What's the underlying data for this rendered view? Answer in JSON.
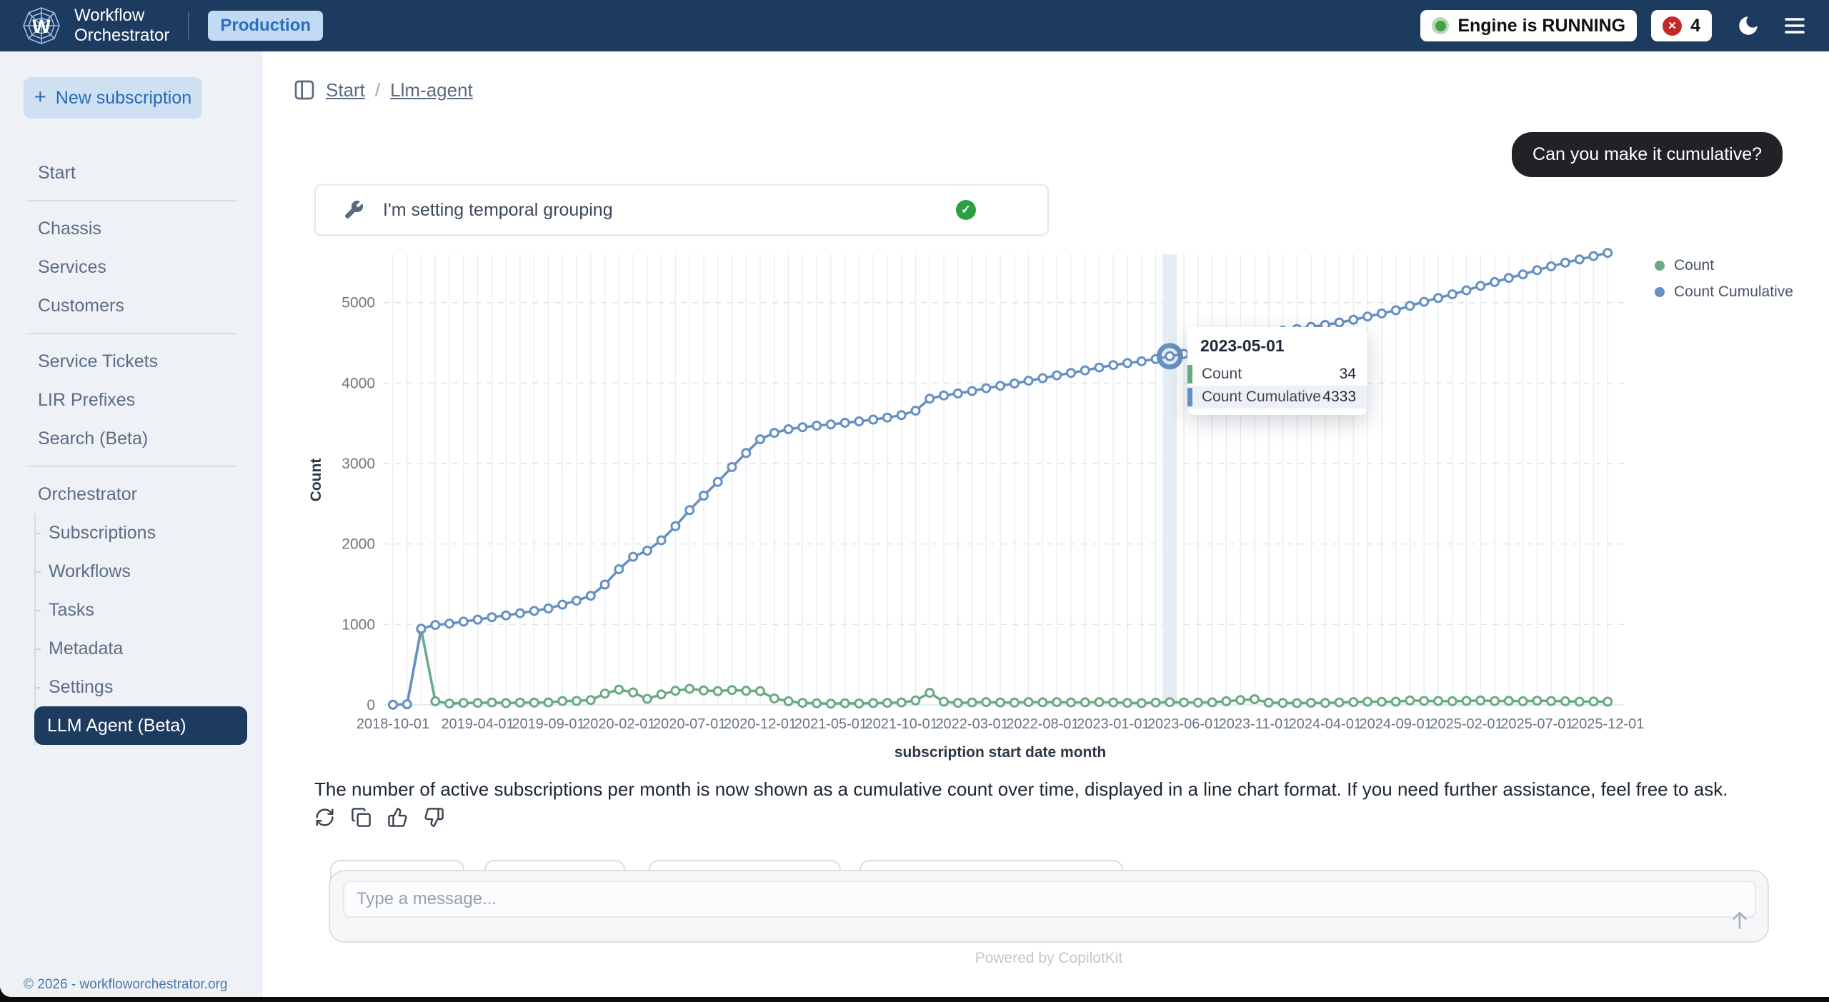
{
  "navbar": {
    "brand_line1": "Workflow",
    "brand_line2": "Orchestrator",
    "env_badge": "Production",
    "engine_status": "Engine is RUNNING",
    "failed_tasks_count": "4",
    "error_glyph": "✕"
  },
  "sidebar": {
    "new_subscription_label": "New subscription",
    "plus_glyph": "+",
    "items": [
      {
        "type": "item",
        "label": "Start"
      },
      {
        "type": "divider"
      },
      {
        "type": "item",
        "label": "Chassis"
      },
      {
        "type": "item",
        "label": "Services"
      },
      {
        "type": "item",
        "label": "Customers"
      },
      {
        "type": "divider"
      },
      {
        "type": "item",
        "label": "Service Tickets"
      },
      {
        "type": "item",
        "label": "LIR Prefixes"
      },
      {
        "type": "item",
        "label": "Search (Beta)"
      },
      {
        "type": "divider"
      },
      {
        "type": "item",
        "label": "Orchestrator"
      },
      {
        "type": "sub",
        "label": "Subscriptions"
      },
      {
        "type": "sub",
        "label": "Workflows"
      },
      {
        "type": "sub",
        "label": "Tasks"
      },
      {
        "type": "sub",
        "label": "Metadata"
      },
      {
        "type": "sub",
        "label": "Settings"
      },
      {
        "type": "sub-selected",
        "label": "LLM Agent (Beta)"
      }
    ],
    "footer": "© 2026 - workfloworchestrator.org"
  },
  "breadcrumb": {
    "items": [
      "Start",
      "Llm-agent"
    ],
    "separator": "/"
  },
  "chat": {
    "user_message": "Can you make it cumulative?",
    "tool_call": {
      "label": "I'm setting temporal grouping",
      "status": "success",
      "check_glyph": "✓"
    },
    "assistant_message": "The number of active subscriptions per month is now shown as a cumulative count over time, displayed in a line chart format. If you need further assistance, feel free to ask.",
    "input_placeholder": "Type a message...",
    "powered_by": "Powered by CopilotKit"
  },
  "chart_data": {
    "type": "line",
    "xlabel": "subscription start date month",
    "ylabel": "Count",
    "start_month": "2018-10",
    "months_total": 87,
    "ylim": [
      0,
      5700
    ],
    "yticks": [
      0,
      1000,
      2000,
      3000,
      4000,
      5000
    ],
    "x_tick_month_index": [
      0,
      6,
      11,
      16,
      21,
      26,
      31,
      36,
      41,
      46,
      51,
      56,
      61,
      66,
      71,
      76,
      81,
      86
    ],
    "x_tick_labels": [
      "2018-10-01",
      "2019-04-01",
      "2019-09-01",
      "2020-02-01",
      "2020-07-01",
      "2020-12-01",
      "2021-05-01",
      "2021-10-01",
      "2022-03-01",
      "2022-08-01",
      "2023-01-01",
      "2023-06-01",
      "2023-11-01",
      "2024-04-01",
      "2024-09-01",
      "2025-02-01",
      "2025-07-01",
      "2025-12-01"
    ],
    "legend": [
      "Count",
      "Count Cumulative"
    ],
    "series": [
      {
        "name": "Count",
        "color": "#69a986",
        "values": [
          2,
          6,
          940,
          45,
          17,
          25,
          25,
          30,
          22,
          28,
          28,
          30,
          48,
          50,
          60,
          140,
          190,
          155,
          75,
          130,
          175,
          200,
          180,
          170,
          185,
          175,
          170,
          80,
          45,
          25,
          20,
          15,
          20,
          18,
          22,
          25,
          30,
          55,
          150,
          40,
          25,
          30,
          35,
          30,
          28,
          35,
          32,
          35,
          30,
          32,
          35,
          30,
          25,
          22,
          29,
          34,
          30,
          28,
          32,
          45,
          60,
          70,
          28,
          24,
          22,
          26,
          24,
          30,
          35,
          40,
          38,
          40,
          55,
          50,
          48,
          45,
          50,
          55,
          48,
          50,
          45,
          52,
          48,
          45,
          40,
          42,
          40
        ]
      },
      {
        "name": "Count Cumulative",
        "color": "#6590c1",
        "derived": "cumulative_sum_of_Count",
        "final_value": 5618
      }
    ],
    "tooltip": {
      "date": "2023-05-01",
      "month_index": 55,
      "rows": [
        {
          "label": "Count",
          "value": "34",
          "color": "#69a986"
        },
        {
          "label": "Count Cumulative",
          "value": "4333",
          "color": "#6590c1"
        }
      ]
    }
  }
}
